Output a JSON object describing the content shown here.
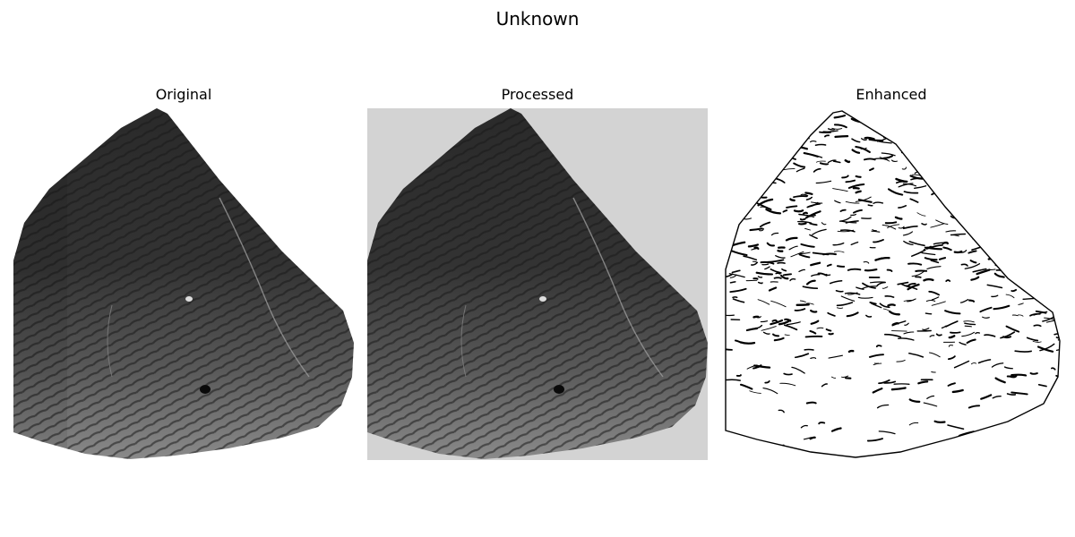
{
  "figure": {
    "title": "Unknown",
    "panels": [
      {
        "title": "Original"
      },
      {
        "title": "Processed"
      },
      {
        "title": "Enhanced"
      }
    ]
  },
  "colors": {
    "background": "#ffffff",
    "processed_background": "#d3d3d3",
    "edge_ink": "#000000"
  }
}
